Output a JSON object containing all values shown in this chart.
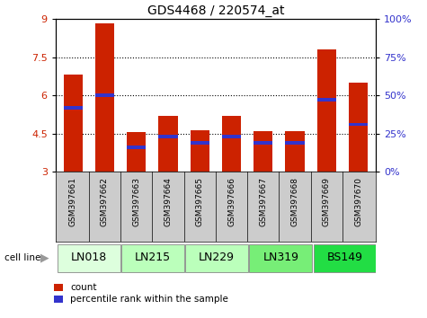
{
  "title": "GDS4468 / 220574_at",
  "samples": [
    "GSM397661",
    "GSM397662",
    "GSM397663",
    "GSM397664",
    "GSM397665",
    "GSM397666",
    "GSM397667",
    "GSM397668",
    "GSM397669",
    "GSM397670"
  ],
  "count_values": [
    6.82,
    8.82,
    4.55,
    5.18,
    4.62,
    5.18,
    4.6,
    4.58,
    7.82,
    6.5
  ],
  "percentile_values": [
    42,
    50,
    16,
    23,
    19,
    23,
    19,
    19,
    47,
    31
  ],
  "ymin": 3,
  "ymax": 9,
  "yticks": [
    3,
    4.5,
    6,
    7.5,
    9
  ],
  "ytick_labels": [
    "3",
    "4.5",
    "6",
    "7.5",
    "9"
  ],
  "right_yticks": [
    0,
    25,
    50,
    75,
    100
  ],
  "right_ytick_labels": [
    "0%",
    "25%",
    "50%",
    "75%",
    "100%"
  ],
  "grid_lines": [
    4.5,
    6.0,
    7.5
  ],
  "bar_color": "#cc2200",
  "blue_color": "#3333cc",
  "bar_width": 0.6,
  "cell_line_data": [
    {
      "label": "LN018",
      "start": 0,
      "end": 1,
      "color": "#ddffdd"
    },
    {
      "label": "LN215",
      "start": 2,
      "end": 3,
      "color": "#bbffbb"
    },
    {
      "label": "LN229",
      "start": 4,
      "end": 5,
      "color": "#bbffbb"
    },
    {
      "label": "LN319",
      "start": 6,
      "end": 7,
      "color": "#77ee77"
    },
    {
      "label": "BS149",
      "start": 8,
      "end": 9,
      "color": "#22dd44"
    }
  ],
  "sample_area_color": "#cccccc",
  "title_fontsize": 10,
  "tick_fontsize": 8,
  "sample_fontsize": 6.5,
  "cellline_fontsize": 9
}
